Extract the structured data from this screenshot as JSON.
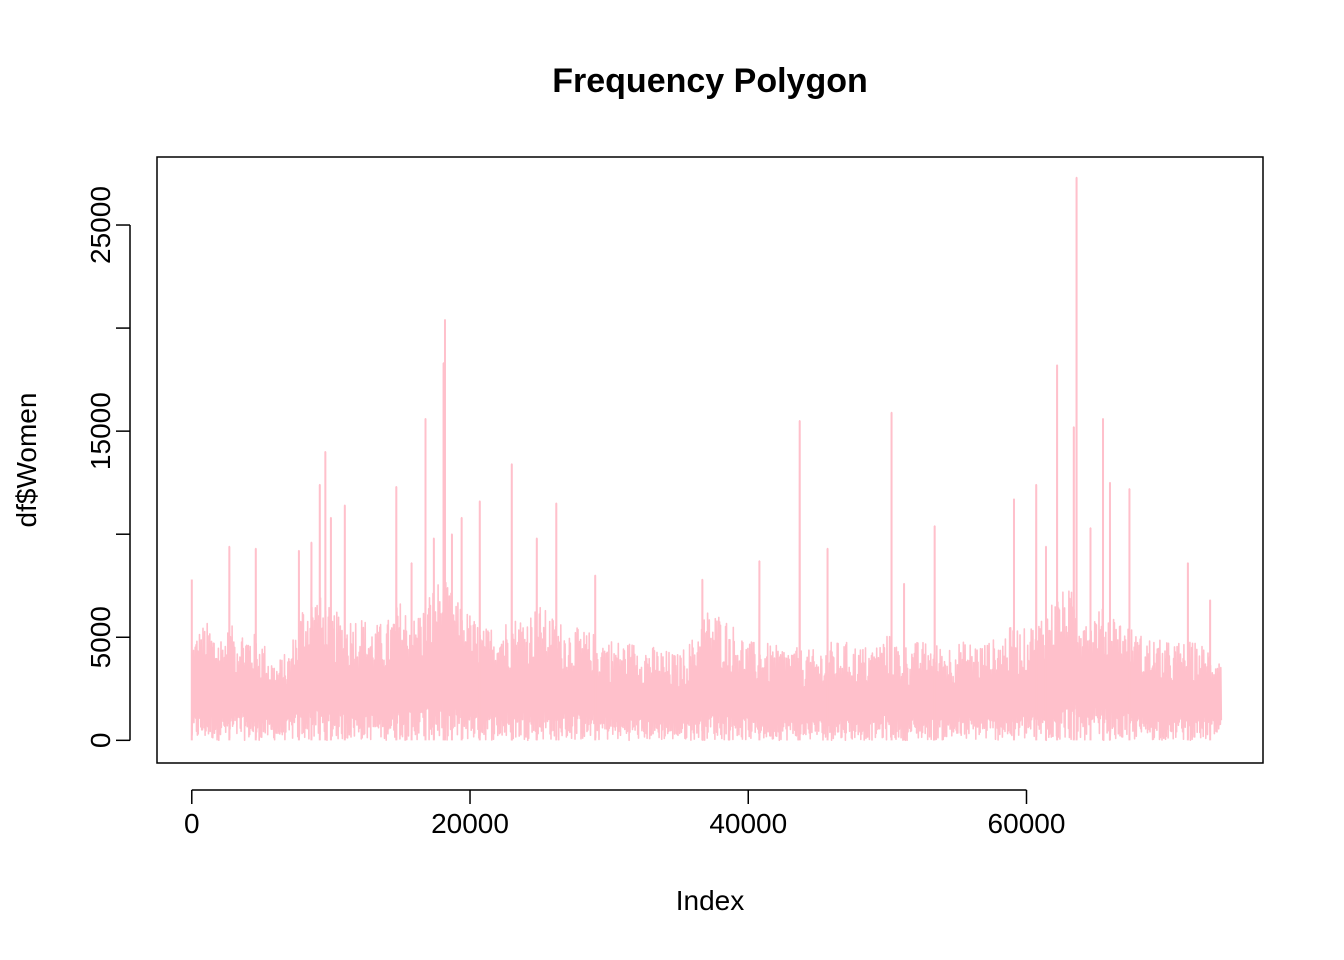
{
  "chart_data": {
    "type": "line",
    "title": "Frequency Polygon",
    "xlabel": "Index",
    "ylabel": "df$Women",
    "xlim": [
      -2500,
      77000
    ],
    "ylim": [
      -1100,
      28300
    ],
    "x_ticks": [
      0,
      20000,
      40000,
      60000
    ],
    "x_tick_labels": [
      "0",
      "20000",
      "40000",
      "60000"
    ],
    "y_ticks": [
      0,
      5000,
      10000,
      15000,
      20000,
      25000
    ],
    "y_tick_labels": [
      "0",
      "5000",
      "",
      "15000",
      "",
      "25000"
    ],
    "grid": false,
    "legend": "none",
    "series": [
      {
        "color": "#FFC0CB",
        "x_range": [
          1,
          74000
        ],
        "x": [
          0,
          1000,
          2000,
          3000,
          4000,
          5000,
          6000,
          7000,
          8000,
          9000,
          10000,
          11000,
          12000,
          13000,
          14000,
          15000,
          16000,
          17000,
          18000,
          19000,
          20000,
          21000,
          22000,
          23000,
          24000,
          25000,
          26000,
          27000,
          28000,
          29000,
          30000,
          31000,
          32000,
          33000,
          34000,
          35000,
          36000,
          37000,
          38000,
          39000,
          40000,
          41000,
          42000,
          43000,
          44000,
          45000,
          46000,
          47000,
          48000,
          49000,
          50000,
          51000,
          52000,
          53000,
          54000,
          55000,
          56000,
          57000,
          58000,
          59000,
          60000,
          61000,
          62000,
          63000,
          64000,
          65000,
          66000,
          67000,
          68000,
          69000,
          70000,
          71000,
          72000,
          73000,
          74000
        ],
        "typical_high": [
          5000,
          5800,
          5200,
          5600,
          5400,
          5000,
          3800,
          4400,
          6800,
          7200,
          6400,
          6000,
          6200,
          5600,
          5800,
          6800,
          6000,
          7200,
          8000,
          6800,
          6200,
          5400,
          5800,
          6000,
          6200,
          6600,
          6000,
          5600,
          5400,
          5200,
          5000,
          4800,
          4800,
          4600,
          4400,
          4200,
          5000,
          6400,
          6200,
          5600,
          4800,
          4800,
          4600,
          4600,
          4400,
          4400,
          4800,
          4800,
          4600,
          4600,
          5200,
          4600,
          4800,
          4800,
          4600,
          4800,
          4800,
          4800,
          5000,
          5600,
          5400,
          6200,
          7000,
          7400,
          6800,
          6400,
          6400,
          5800,
          5200,
          5000,
          4800,
          4800,
          4800,
          4600,
          4400
        ],
        "peaks": [
          {
            "x": 0,
            "y": 7800
          },
          {
            "x": 2700,
            "y": 9400
          },
          {
            "x": 4600,
            "y": 9300
          },
          {
            "x": 7700,
            "y": 9200
          },
          {
            "x": 8600,
            "y": 9600
          },
          {
            "x": 9200,
            "y": 12400
          },
          {
            "x": 9600,
            "y": 14000
          },
          {
            "x": 10000,
            "y": 10800
          },
          {
            "x": 11000,
            "y": 11400
          },
          {
            "x": 14700,
            "y": 12300
          },
          {
            "x": 15800,
            "y": 8600
          },
          {
            "x": 16800,
            "y": 15600
          },
          {
            "x": 17400,
            "y": 9800
          },
          {
            "x": 18100,
            "y": 18300
          },
          {
            "x": 18200,
            "y": 20400
          },
          {
            "x": 18700,
            "y": 10000
          },
          {
            "x": 19400,
            "y": 10800
          },
          {
            "x": 20700,
            "y": 11600
          },
          {
            "x": 23000,
            "y": 13400
          },
          {
            "x": 24800,
            "y": 9800
          },
          {
            "x": 26200,
            "y": 11500
          },
          {
            "x": 29000,
            "y": 8000
          },
          {
            "x": 36700,
            "y": 7800
          },
          {
            "x": 40800,
            "y": 8700
          },
          {
            "x": 43700,
            "y": 15500
          },
          {
            "x": 45700,
            "y": 9300
          },
          {
            "x": 50300,
            "y": 15900
          },
          {
            "x": 51200,
            "y": 7600
          },
          {
            "x": 53400,
            "y": 10400
          },
          {
            "x": 59100,
            "y": 11700
          },
          {
            "x": 60700,
            "y": 12400
          },
          {
            "x": 61400,
            "y": 9400
          },
          {
            "x": 62200,
            "y": 18200
          },
          {
            "x": 63400,
            "y": 15200
          },
          {
            "x": 63600,
            "y": 27300
          },
          {
            "x": 64600,
            "y": 10300
          },
          {
            "x": 65500,
            "y": 15600
          },
          {
            "x": 66000,
            "y": 12500
          },
          {
            "x": 67400,
            "y": 12200
          },
          {
            "x": 71600,
            "y": 8600
          },
          {
            "x": 73200,
            "y": 6800
          }
        ],
        "y_min": 0
      }
    ]
  }
}
